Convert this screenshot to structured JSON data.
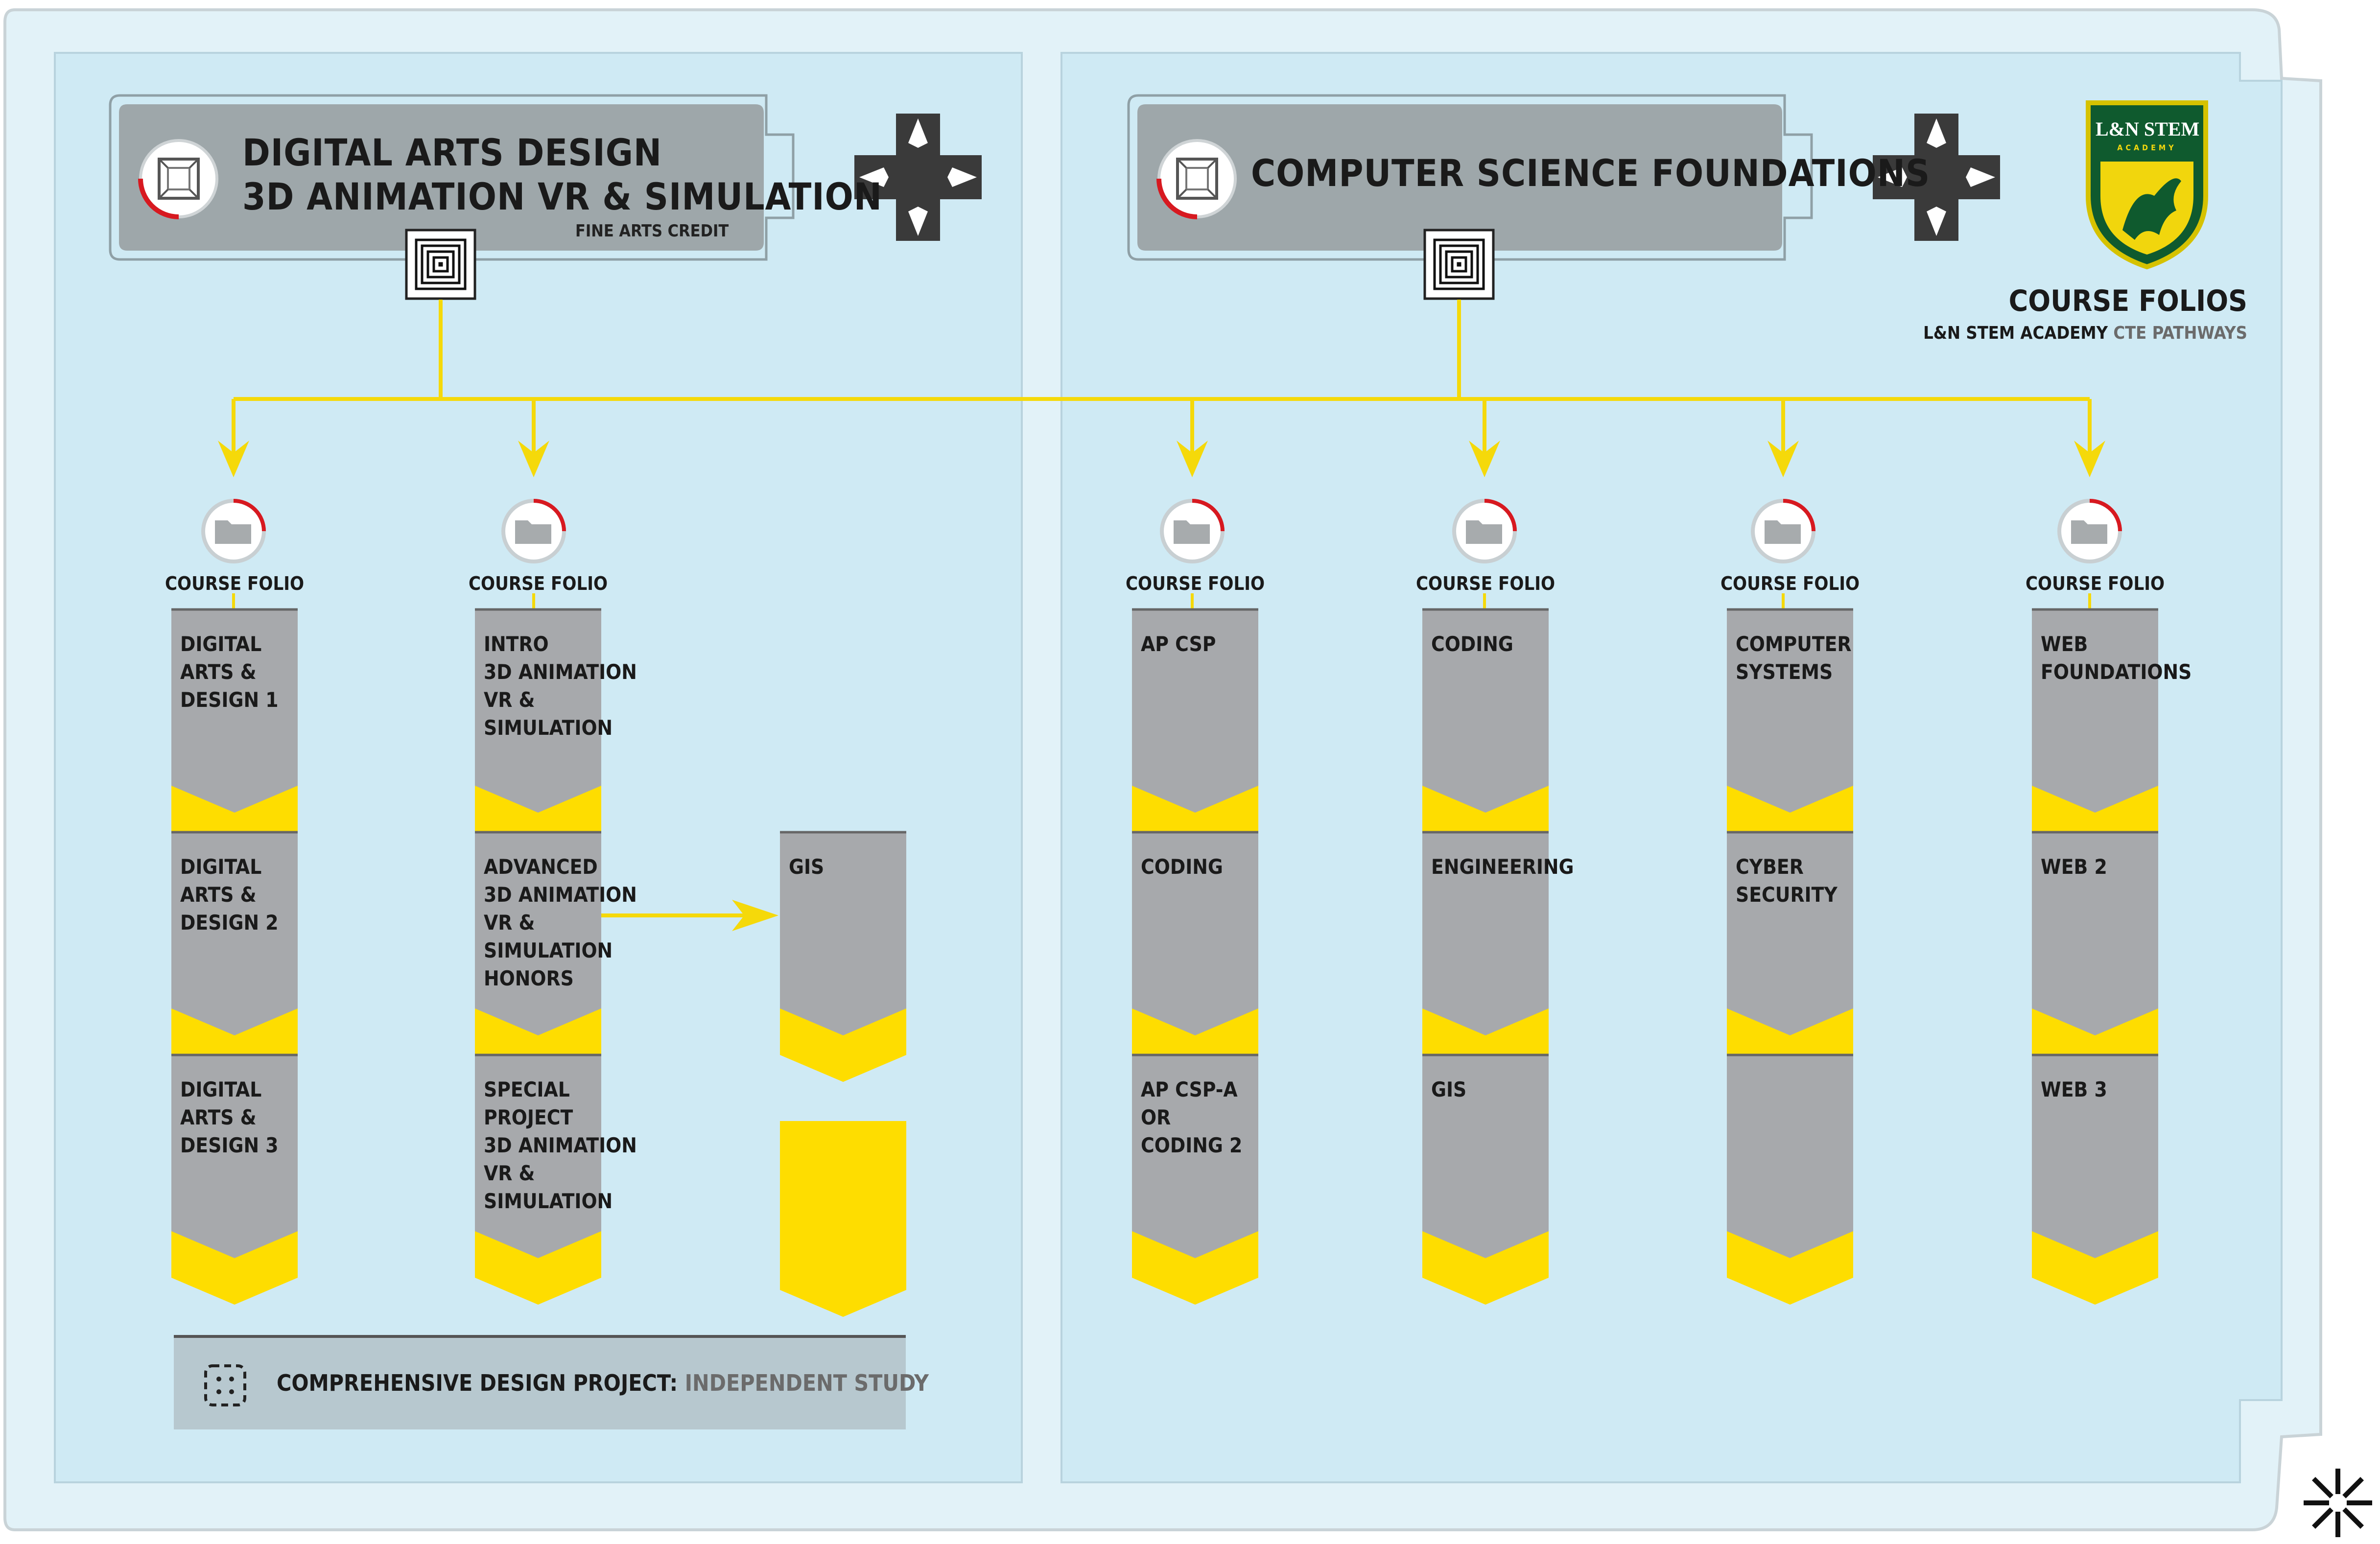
{
  "left_panel": {
    "header": {
      "title_line1": "DIGITAL ARTS DESIGN",
      "title_line2": "3D ANIMATION VR & SIMULATION",
      "subtitle": "FINE ARTS CREDIT"
    },
    "columns": [
      {
        "folio_label": "COURSE FOLIO",
        "courses": [
          "DIGITAL\nARTS &\nDESIGN 1",
          "DIGITAL\nARTS &\nDESIGN 2",
          "DIGITAL\nARTS &\nDESIGN 3"
        ]
      },
      {
        "folio_label": "COURSE FOLIO",
        "courses": [
          "INTRO\n3D ANIMATION\nVR &\nSIMULATION",
          "ADVANCED\n3D ANIMATION\nVR &\nSIMULATION\nHONORS",
          "SPECIAL\nPROJECT\n3D ANIMATION\nVR &\nSIMULATION"
        ]
      }
    ],
    "side_course": "GIS",
    "capstone": {
      "label": "COMPREHENSIVE DESIGN PROJECT:",
      "muted": "INDEPENDENT STUDY"
    }
  },
  "right_panel": {
    "header": {
      "title": "COMPUTER SCIENCE FOUNDATIONS"
    },
    "columns": [
      {
        "folio_label": "COURSE FOLIO",
        "courses": [
          "AP CSP",
          "CODING",
          "AP CSP-A\nOR\nCODING 2"
        ]
      },
      {
        "folio_label": "COURSE FOLIO",
        "courses": [
          "CODING",
          "ENGINEERING",
          "GIS"
        ]
      },
      {
        "folio_label": "COURSE FOLIO",
        "courses": [
          "COMPUTER\nSYSTEMS",
          "CYBER\nSECURITY",
          ""
        ]
      },
      {
        "folio_label": "COURSE FOLIO",
        "courses": [
          "WEB\nFOUNDATIONS",
          "WEB 2",
          "WEB 3"
        ]
      }
    ]
  },
  "branding": {
    "logo_text": "L&N STEM",
    "logo_subtext": "ACADEMY",
    "title": "COURSE FOLIOS",
    "subtitle_main": "L&N STEM ACADEMY",
    "subtitle_muted": "CTE PATHWAYS"
  },
  "colors": {
    "panel_bg": "#cfeaf4",
    "outer_bg": "#e2f2f8",
    "card_gray": "#a7a9ac",
    "accent_yellow": "#fedd00",
    "connector_yellow": "#f5d90a",
    "icon_red": "#d71920",
    "header_gray": "#9ea7aa",
    "capstone_bg": "#b7c8cf",
    "text_dark": "#1a1a1a"
  },
  "icons": [
    "cube-icon",
    "target-icon",
    "dpad-icon",
    "folder-icon",
    "dotted-square-icon",
    "griffin-shield-logo",
    "snowflake-corner-icon"
  ]
}
